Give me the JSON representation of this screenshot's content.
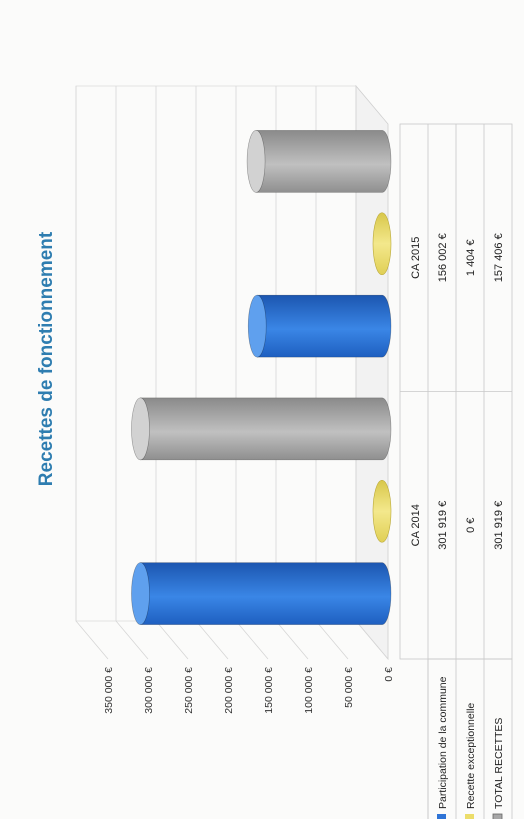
{
  "chart_data": {
    "type": "bar",
    "title": "Recettes de fonctionnement",
    "categories": [
      "CA 2014",
      "CA 2015"
    ],
    "series": [
      {
        "name": "Participation de la commune",
        "values": [
          301919,
          156002
        ],
        "labels": [
          "301 919 €",
          "156 002 €"
        ],
        "color": "#2f74d6"
      },
      {
        "name": "Recette exceptionnelle",
        "values": [
          0,
          1404
        ],
        "labels": [
          "0 €",
          "1 404 €"
        ],
        "color": "#ecdd6a"
      },
      {
        "name": "TOTAL RECETTES",
        "values": [
          301919,
          157406
        ],
        "labels": [
          "301 919 €",
          "157 406 €"
        ],
        "color": "#a7a7a7"
      }
    ],
    "yticks": [
      "0 €",
      "50 000 €",
      "100 000 €",
      "150 000 €",
      "200 000 €",
      "250 000 €",
      "300 000 €",
      "350 000 €"
    ],
    "ylim": [
      0,
      350000
    ],
    "grid": true,
    "legend": "data-table",
    "orientation": "page rotated 90° counter-clockwise"
  }
}
